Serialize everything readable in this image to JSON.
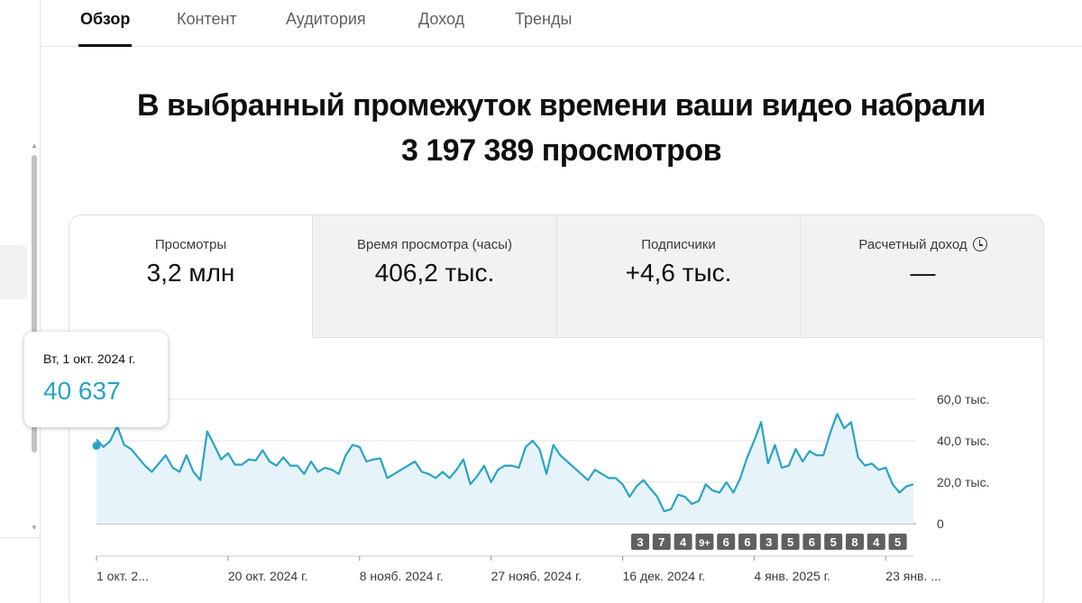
{
  "tabs": [
    {
      "label": "Обзор",
      "active": true
    },
    {
      "label": "Контент",
      "active": false
    },
    {
      "label": "Аудитория",
      "active": false
    },
    {
      "label": "Доход",
      "active": false
    },
    {
      "label": "Тренды",
      "active": false
    }
  ],
  "headline": {
    "line1": "В выбранный промежуток времени ваши видео набрали",
    "line2": "3 197 389 просмотров"
  },
  "metrics": [
    {
      "label": "Просмотры",
      "value": "3,2 млн",
      "selected": true
    },
    {
      "label": "Время просмотра (часы)",
      "value": "406,2 тыс.",
      "selected": false
    },
    {
      "label": "Подписчики",
      "value": "+4,6 тыс.",
      "selected": false
    },
    {
      "label": "Расчетный доход",
      "value": "—",
      "selected": false,
      "icon": "clock-icon"
    }
  ],
  "tooltip": {
    "date": "Вт, 1 окт. 2024 г.",
    "value": "40 637"
  },
  "colors": {
    "line": "#2aa3c6",
    "area": "#e6f4fa",
    "badge": "#606060",
    "accent": "#0f0f0f"
  },
  "chart_data": {
    "type": "area",
    "series": [
      {
        "name": "Просмотры",
        "values": [
          40637,
          37000,
          40000,
          47000,
          38000,
          36000,
          32000,
          28000,
          25000,
          29000,
          33000,
          27000,
          25000,
          33000,
          25000,
          21000,
          44500,
          38000,
          31000,
          34000,
          28500,
          28500,
          31000,
          30500,
          35500,
          30000,
          28000,
          32000,
          28000,
          28000,
          24000,
          30000,
          25000,
          27000,
          26000,
          24000,
          33000,
          38000,
          37000,
          30000,
          31000,
          31500,
          22000,
          24000,
          26000,
          28000,
          30000,
          25000,
          24000,
          22000,
          25000,
          22000,
          26000,
          31000,
          19000,
          23000,
          28000,
          20000,
          26000,
          28000,
          28000,
          27000,
          37000,
          40000,
          36000,
          24000,
          38000,
          33000,
          30000,
          27000,
          24000,
          21000,
          26000,
          24000,
          22000,
          22000,
          19000,
          13000,
          18000,
          21000,
          17000,
          13000,
          6000,
          7000,
          14000,
          13000,
          9500,
          11000,
          19000,
          16000,
          15000,
          20000,
          15000,
          22000,
          32000,
          40000,
          49000,
          29000,
          38000,
          27000,
          28000,
          36000,
          30000,
          35000,
          33000,
          33000,
          44000,
          53000,
          46000,
          49000,
          32000,
          28000,
          29000,
          26000,
          27000,
          19000,
          15000,
          18000,
          19000
        ]
      }
    ],
    "yticks": [
      "0",
      "20,0 тыс.",
      "40,0 тыс.",
      "60,0 тыс."
    ],
    "ylim": [
      0,
      60000
    ],
    "xticks": [
      {
        "label": "1 окт. 2...",
        "index": 0
      },
      {
        "label": "20 окт. 2024 г.",
        "index": 19
      },
      {
        "label": "8 нояб. 2024 г.",
        "index": 38
      },
      {
        "label": "27 нояб. 2024 г.",
        "index": 57
      },
      {
        "label": "16 дек. 2024 г.",
        "index": 76
      },
      {
        "label": "4 янв. 2025 г.",
        "index": 95
      },
      {
        "label": "23 янв. ...",
        "index": 114
      }
    ],
    "badges": [
      "3",
      "7",
      "4",
      "9+",
      "6",
      "6",
      "3",
      "5",
      "6",
      "5",
      "8",
      "4",
      "5"
    ],
    "grid": true
  }
}
